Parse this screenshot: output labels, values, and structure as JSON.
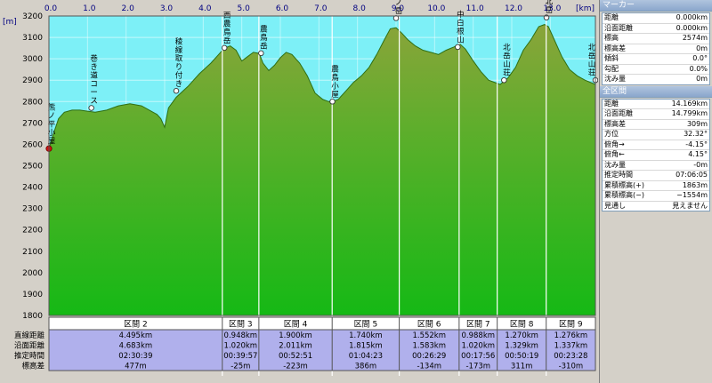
{
  "chart_data": {
    "type": "area",
    "title": "",
    "xlabel": "[km]",
    "ylabel": "[m]",
    "xlim": [
      0,
      14.169
    ],
    "ylim": [
      1800,
      3200
    ],
    "xticks": [
      "0.0",
      "1.0",
      "2.0",
      "3.0",
      "4.0",
      "5.0",
      "6.0",
      "7.0",
      "8.0",
      "9.0",
      "10.0",
      "11.0",
      "12.0",
      "13.0"
    ],
    "yticks": [
      "3200",
      "3100",
      "3000",
      "2900",
      "2800",
      "2700",
      "2600",
      "2500",
      "2400",
      "2300",
      "2200",
      "2100",
      "2000",
      "1900",
      "1800"
    ],
    "x": [
      0,
      0.1,
      0.25,
      0.4,
      0.6,
      0.8,
      1.0,
      1.2,
      1.5,
      1.8,
      2.1,
      2.4,
      2.6,
      2.8,
      2.9,
      3.0,
      3.1,
      3.3,
      3.6,
      3.9,
      4.2,
      4.4,
      4.55,
      4.7,
      4.85,
      5.0,
      5.15,
      5.3,
      5.45,
      5.55,
      5.7,
      5.85,
      6.0,
      6.15,
      6.3,
      6.5,
      6.7,
      6.9,
      7.1,
      7.25,
      7.35,
      7.5,
      7.7,
      7.9,
      8.1,
      8.3,
      8.5,
      8.7,
      8.85,
      9.0,
      9.15,
      9.3,
      9.5,
      9.7,
      9.9,
      10.1,
      10.3,
      10.5,
      10.65,
      10.8,
      11.0,
      11.2,
      11.4,
      11.55,
      11.7,
      11.9,
      12.1,
      12.3,
      12.5,
      12.7,
      12.85,
      12.95,
      13.1,
      13.3,
      13.5,
      13.7,
      13.9,
      14.169
    ],
    "y": [
      2580,
      2640,
      2720,
      2750,
      2760,
      2760,
      2755,
      2750,
      2760,
      2780,
      2790,
      2780,
      2760,
      2740,
      2720,
      2680,
      2770,
      2820,
      2870,
      2930,
      2980,
      3020,
      3050,
      3060,
      3040,
      2990,
      3010,
      3030,
      3025,
      2980,
      2945,
      2970,
      3005,
      3030,
      3020,
      2980,
      2920,
      2840,
      2810,
      2800,
      2800,
      2810,
      2850,
      2890,
      2920,
      2960,
      3020,
      3090,
      3140,
      3145,
      3120,
      3090,
      3060,
      3040,
      3030,
      3020,
      3040,
      3055,
      3070,
      3045,
      2990,
      2940,
      2900,
      2890,
      2880,
      2910,
      2960,
      3040,
      3090,
      3150,
      3160,
      3150,
      3090,
      3010,
      2950,
      2920,
      2900,
      2880
    ],
    "waypoints": [
      {
        "name": "熊ノ平小屋",
        "km": 0.0,
        "elev": 2580
      },
      {
        "name": "巻き道コース",
        "km": 1.1,
        "elev": 2770
      },
      {
        "name": "稜線取り付き",
        "km": 3.3,
        "elev": 2850
      },
      {
        "name": "西農鳥岳",
        "km": 4.55,
        "elev": 3051
      },
      {
        "name": "農鳥岳",
        "km": 5.5,
        "elev": 3026
      },
      {
        "name": "農鳥小屋",
        "km": 7.35,
        "elev": 2800
      },
      {
        "name": "間ノ岳",
        "km": 9.0,
        "elev": 3190
      },
      {
        "name": "中白根山",
        "km": 10.6,
        "elev": 3055
      },
      {
        "name": "北岳山荘",
        "km": 11.8,
        "elev": 2900
      },
      {
        "name": "北岳",
        "km": 12.9,
        "elev": 3193
      },
      {
        "name": "北岳山荘",
        "km": 14.169,
        "elev": 2900
      }
    ],
    "section_bounds_km": [
      4.495,
      5.443,
      7.343,
      9.083,
      10.635,
      11.623,
      12.893
    ],
    "sections": [
      {
        "name": "区間 2",
        "dist": "4.495km",
        "along": "4.683km",
        "time": "02:30:39",
        "diff": "477m"
      },
      {
        "name": "区間 3",
        "dist": "0.948km",
        "along": "1.020km",
        "time": "00:39:57",
        "diff": "-25m"
      },
      {
        "name": "区間 4",
        "dist": "1.900km",
        "along": "2.011km",
        "time": "00:52:51",
        "diff": "-223m"
      },
      {
        "name": "区間 5",
        "dist": "1.740km",
        "along": "1.815km",
        "time": "01:04:23",
        "diff": "386m"
      },
      {
        "name": "区間 6",
        "dist": "1.552km",
        "along": "1.583km",
        "time": "00:26:29",
        "diff": "-134m"
      },
      {
        "name": "区間 7",
        "dist": "0.988km",
        "along": "1.020km",
        "time": "00:17:56",
        "diff": "-173m"
      },
      {
        "name": "区間 8",
        "dist": "1.270km",
        "along": "1.329km",
        "time": "00:50:19",
        "diff": "311m"
      },
      {
        "name": "区間 9",
        "dist": "1.276km",
        "along": "1.337km",
        "time": "00:23:28",
        "diff": "-310m"
      }
    ],
    "row_labels": [
      "直線距離",
      "沿面距離",
      "推定時間",
      "標高差"
    ]
  },
  "marker_panel": {
    "title": "マーカー",
    "rows": [
      {
        "label": "距離",
        "value": "0.000km"
      },
      {
        "label": "沿面距離",
        "value": "0.000km"
      },
      {
        "label": "標高",
        "value": "2574m"
      },
      {
        "label": "標高差",
        "value": "0m"
      },
      {
        "label": "傾斜",
        "value": "0.0°"
      },
      {
        "label": "勾配",
        "value": "0.0%"
      },
      {
        "label": "沈み量",
        "value": "0m"
      }
    ]
  },
  "total_panel": {
    "title": "全区間",
    "rows": [
      {
        "label": "距離",
        "value": "14.169km"
      },
      {
        "label": "沿面距離",
        "value": "14.799km"
      },
      {
        "label": "標高差",
        "value": "309m"
      },
      {
        "label": "方位",
        "value": "32.32°"
      },
      {
        "label": "俯角→",
        "value": "-4.15°"
      },
      {
        "label": "俯角←",
        "value": "4.15°"
      },
      {
        "label": "沈み量",
        "value": "-0m"
      },
      {
        "label": "推定時間",
        "value": "07:06:05"
      },
      {
        "label": "累積標高(+)",
        "value": "1863m"
      },
      {
        "label": "累積標高(−)",
        "value": "−1554m"
      },
      {
        "label": "見通し",
        "value": "見えません"
      }
    ]
  },
  "colors": {
    "sky": "#7df0f7",
    "terrain_top": "#8ca83a",
    "terrain_bottom": "#14b814",
    "frame_bg": "#d4d0c8",
    "table_bg": "#b0b0ec",
    "marker": "#d01010"
  }
}
